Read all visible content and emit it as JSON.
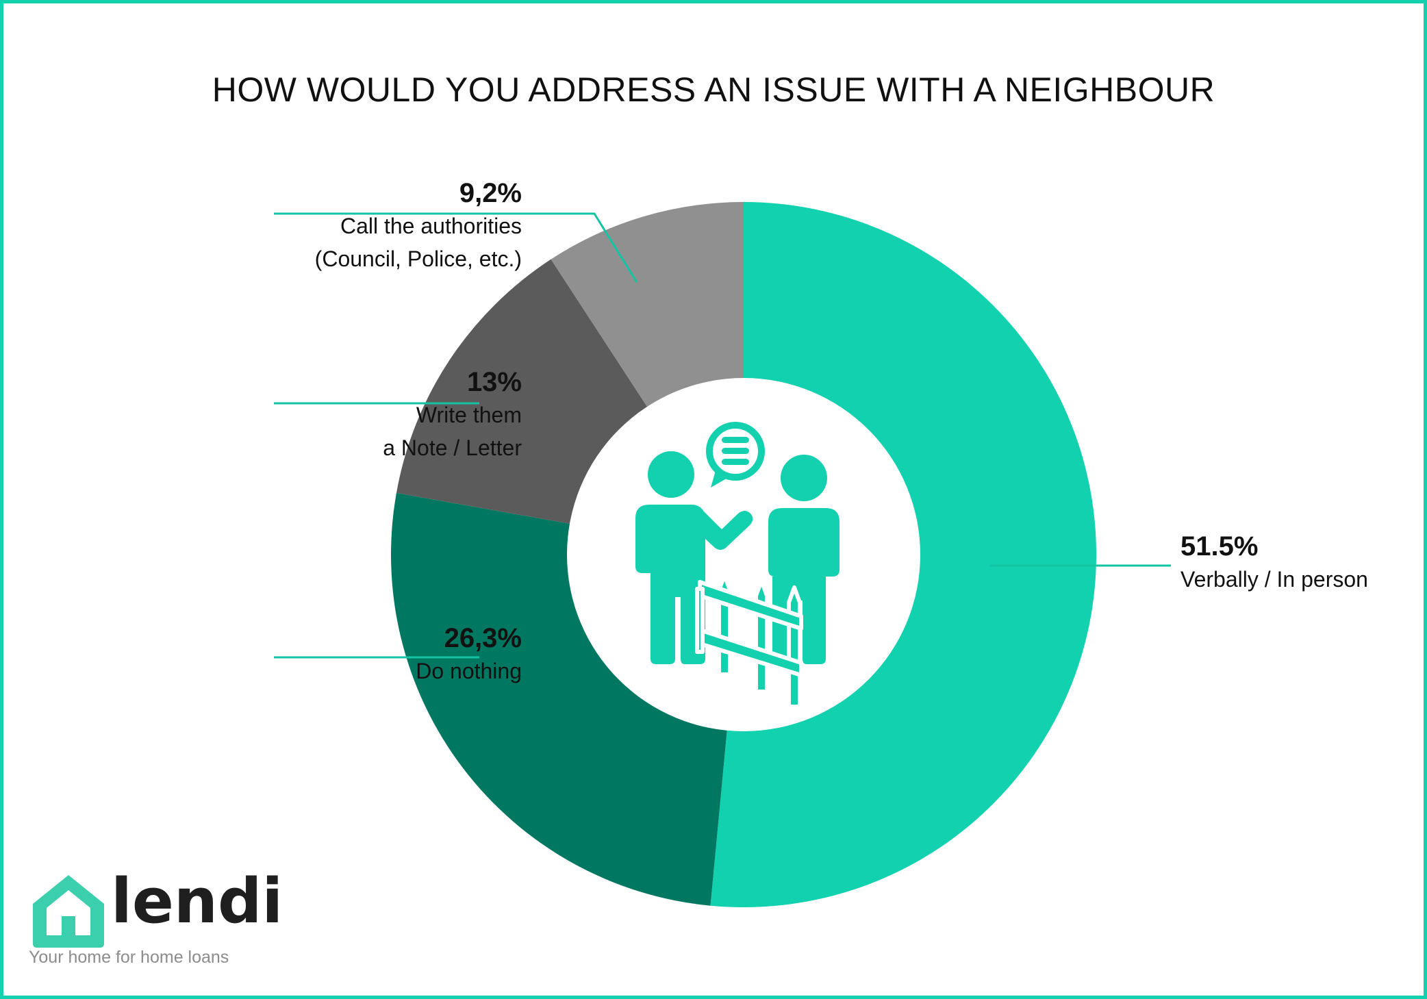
{
  "colors": {
    "border": "#13d1ae",
    "verbally": "#12d1ae",
    "nothing": "#007861",
    "note": "#5b5b5b",
    "authorities": "#909090",
    "leader": "#13c4a3",
    "icon": "#13d1ae",
    "logo_text": "#1f1f1f",
    "logo_tagline": "#8c8c8c"
  },
  "chart_data": {
    "type": "pie",
    "title": "HOW WOULD YOU ADDRESS AN ISSUE WITH A NEIGHBOUR",
    "hole": true,
    "slices": [
      {
        "key": "verbally",
        "value": 51.5,
        "label_value": "51.5%",
        "label_lines": [
          "Verbally / In person"
        ]
      },
      {
        "key": "nothing",
        "value": 26.3,
        "label_value": "26,3%",
        "label_lines": [
          "Do nothing"
        ]
      },
      {
        "key": "note",
        "value": 13,
        "label_value": "13%",
        "label_lines": [
          "Write them",
          "a Note / Letter"
        ]
      },
      {
        "key": "authorities",
        "value": 9.2,
        "label_value": "9,2%",
        "label_lines": [
          "Call the authorities",
          "(Council, Police, etc.)"
        ]
      }
    ]
  },
  "center_icon": "two-neighbours-talking-over-fence-icon",
  "logo": {
    "icon": "house-icon",
    "wordmark": "lendi",
    "tagline": "Your home for home loans"
  }
}
